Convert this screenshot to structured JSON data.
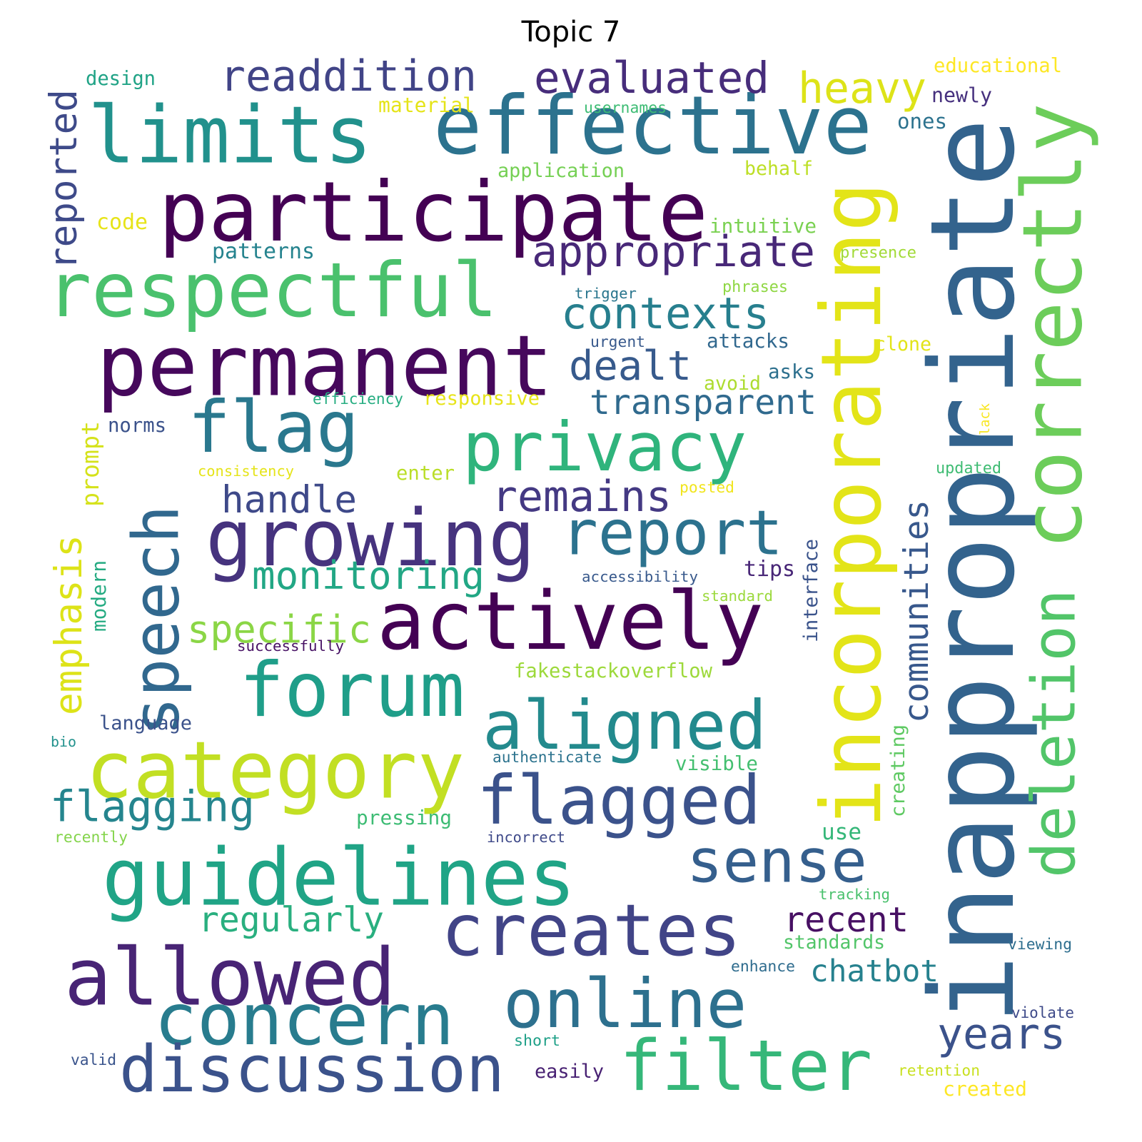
{
  "title": "Topic 7",
  "words": [
    {
      "text": "inappropriate",
      "color": "#33638d"
    },
    {
      "text": "participate",
      "color": "#440154"
    },
    {
      "text": "effective",
      "color": "#2c728e"
    },
    {
      "text": "limits",
      "color": "#21918c"
    },
    {
      "text": "permanent",
      "color": "#46085c"
    },
    {
      "text": "respectful",
      "color": "#4ac16d"
    },
    {
      "text": "correctly",
      "color": "#6ccd5a"
    },
    {
      "text": "incorporating",
      "color": "#e3e418"
    },
    {
      "text": "growing",
      "color": "#46337e"
    },
    {
      "text": "actively",
      "color": "#440154"
    },
    {
      "text": "privacy",
      "color": "#2fb47c"
    },
    {
      "text": "flag",
      "color": "#2a788e"
    },
    {
      "text": "speech",
      "color": "#31688e"
    },
    {
      "text": "guidelines",
      "color": "#20a486"
    },
    {
      "text": "category",
      "color": "#c2df23"
    },
    {
      "text": "forum",
      "color": "#1f9e89"
    },
    {
      "text": "aligned",
      "color": "#238a8d"
    },
    {
      "text": "deletion",
      "color": "#52c569"
    },
    {
      "text": "allowed",
      "color": "#482475"
    },
    {
      "text": "creates",
      "color": "#414487"
    },
    {
      "text": "online",
      "color": "#2d708e"
    },
    {
      "text": "concern",
      "color": "#287c8e"
    },
    {
      "text": "flagged",
      "color": "#3b528b"
    },
    {
      "text": "sense",
      "color": "#355f8d"
    },
    {
      "text": "filter",
      "color": "#35b779"
    },
    {
      "text": "discussion",
      "color": "#3b528b"
    },
    {
      "text": "report",
      "color": "#2c728e"
    },
    {
      "text": "readdition",
      "color": "#414487"
    },
    {
      "text": "evaluated",
      "color": "#472d7b"
    },
    {
      "text": "heavy",
      "color": "#dde318"
    },
    {
      "text": "appropriate",
      "color": "#482878"
    },
    {
      "text": "contexts",
      "color": "#277f8e"
    },
    {
      "text": "reported",
      "color": "#3e4a89"
    },
    {
      "text": "dealt",
      "color": "#375a8c"
    },
    {
      "text": "transparent",
      "color": "#306a8e"
    },
    {
      "text": "remains",
      "color": "#443983"
    },
    {
      "text": "handle",
      "color": "#3e4989"
    },
    {
      "text": "monitoring",
      "color": "#22a785"
    },
    {
      "text": "specific",
      "color": "#8bd646"
    },
    {
      "text": "communities",
      "color": "#38588c"
    },
    {
      "text": "emphasis",
      "color": "#dde318"
    },
    {
      "text": "flagging",
      "color": "#25858e"
    },
    {
      "text": "regularly",
      "color": "#29af7f"
    },
    {
      "text": "recent",
      "color": "#471063"
    },
    {
      "text": "chatbot",
      "color": "#26818e"
    },
    {
      "text": "years",
      "color": "#3b528b"
    },
    {
      "text": "design",
      "color": "#20a386"
    },
    {
      "text": "material",
      "color": "#e5e419"
    },
    {
      "text": "usernames",
      "color": "#3dbc74"
    },
    {
      "text": "educational",
      "color": "#fde725"
    },
    {
      "text": "newly",
      "color": "#46307e"
    },
    {
      "text": "ones",
      "color": "#2c728e"
    },
    {
      "text": "application",
      "color": "#75d054"
    },
    {
      "text": "behalf",
      "color": "#bddf26"
    },
    {
      "text": "code",
      "color": "#e7e419"
    },
    {
      "text": "intuitive",
      "color": "#7ad151"
    },
    {
      "text": "patterns",
      "color": "#25838e"
    },
    {
      "text": "presence",
      "color": "#a2da37"
    },
    {
      "text": "trigger",
      "color": "#2a768e"
    },
    {
      "text": "phrases",
      "color": "#8fd744"
    },
    {
      "text": "urgent",
      "color": "#38598c"
    },
    {
      "text": "attacks",
      "color": "#31688e"
    },
    {
      "text": "clone",
      "color": "#e2e418"
    },
    {
      "text": "asks",
      "color": "#2d708e"
    },
    {
      "text": "avoid",
      "color": "#addc30"
    },
    {
      "text": "efficiency",
      "color": "#26ad81"
    },
    {
      "text": "responsive",
      "color": "#e7e419"
    },
    {
      "text": "lack",
      "color": "#f8e621"
    },
    {
      "text": "prompt",
      "color": "#d5e21a"
    },
    {
      "text": "norms",
      "color": "#3b528b"
    },
    {
      "text": "consistency",
      "color": "#e5e419"
    },
    {
      "text": "enter",
      "color": "#bade28"
    },
    {
      "text": "updated",
      "color": "#3fbc73"
    },
    {
      "text": "posted",
      "color": "#f1e51d"
    },
    {
      "text": "modern",
      "color": "#25ab82"
    },
    {
      "text": "interface",
      "color": "#3a538b"
    },
    {
      "text": "tips",
      "color": "#482677"
    },
    {
      "text": "accessibility",
      "color": "#38598c"
    },
    {
      "text": "standard",
      "color": "#9bd93c"
    },
    {
      "text": "successfully",
      "color": "#471164"
    },
    {
      "text": "fakestackoverflow",
      "color": "#9dd93b"
    },
    {
      "text": "language",
      "color": "#3b528b"
    },
    {
      "text": "bio",
      "color": "#21918c"
    },
    {
      "text": "authenticate",
      "color": "#2c738e"
    },
    {
      "text": "visible",
      "color": "#44bf70"
    },
    {
      "text": "creating",
      "color": "#5ec962"
    },
    {
      "text": "pressing",
      "color": "#3dbc74"
    },
    {
      "text": "recently",
      "color": "#84d44b"
    },
    {
      "text": "incorrect",
      "color": "#3e4989"
    },
    {
      "text": "use",
      "color": "#35b779"
    },
    {
      "text": "tracking",
      "color": "#4ac16d"
    },
    {
      "text": "standards",
      "color": "#52c569"
    },
    {
      "text": "viewing",
      "color": "#2e6e8e"
    },
    {
      "text": "enhance",
      "color": "#2f6c8e"
    },
    {
      "text": "violate",
      "color": "#3e4a89"
    },
    {
      "text": "short",
      "color": "#1fa088"
    },
    {
      "text": "valid",
      "color": "#3a548c"
    },
    {
      "text": "easily",
      "color": "#482173"
    },
    {
      "text": "retention",
      "color": "#c8e020"
    },
    {
      "text": "created",
      "color": "#fde725"
    }
  ]
}
